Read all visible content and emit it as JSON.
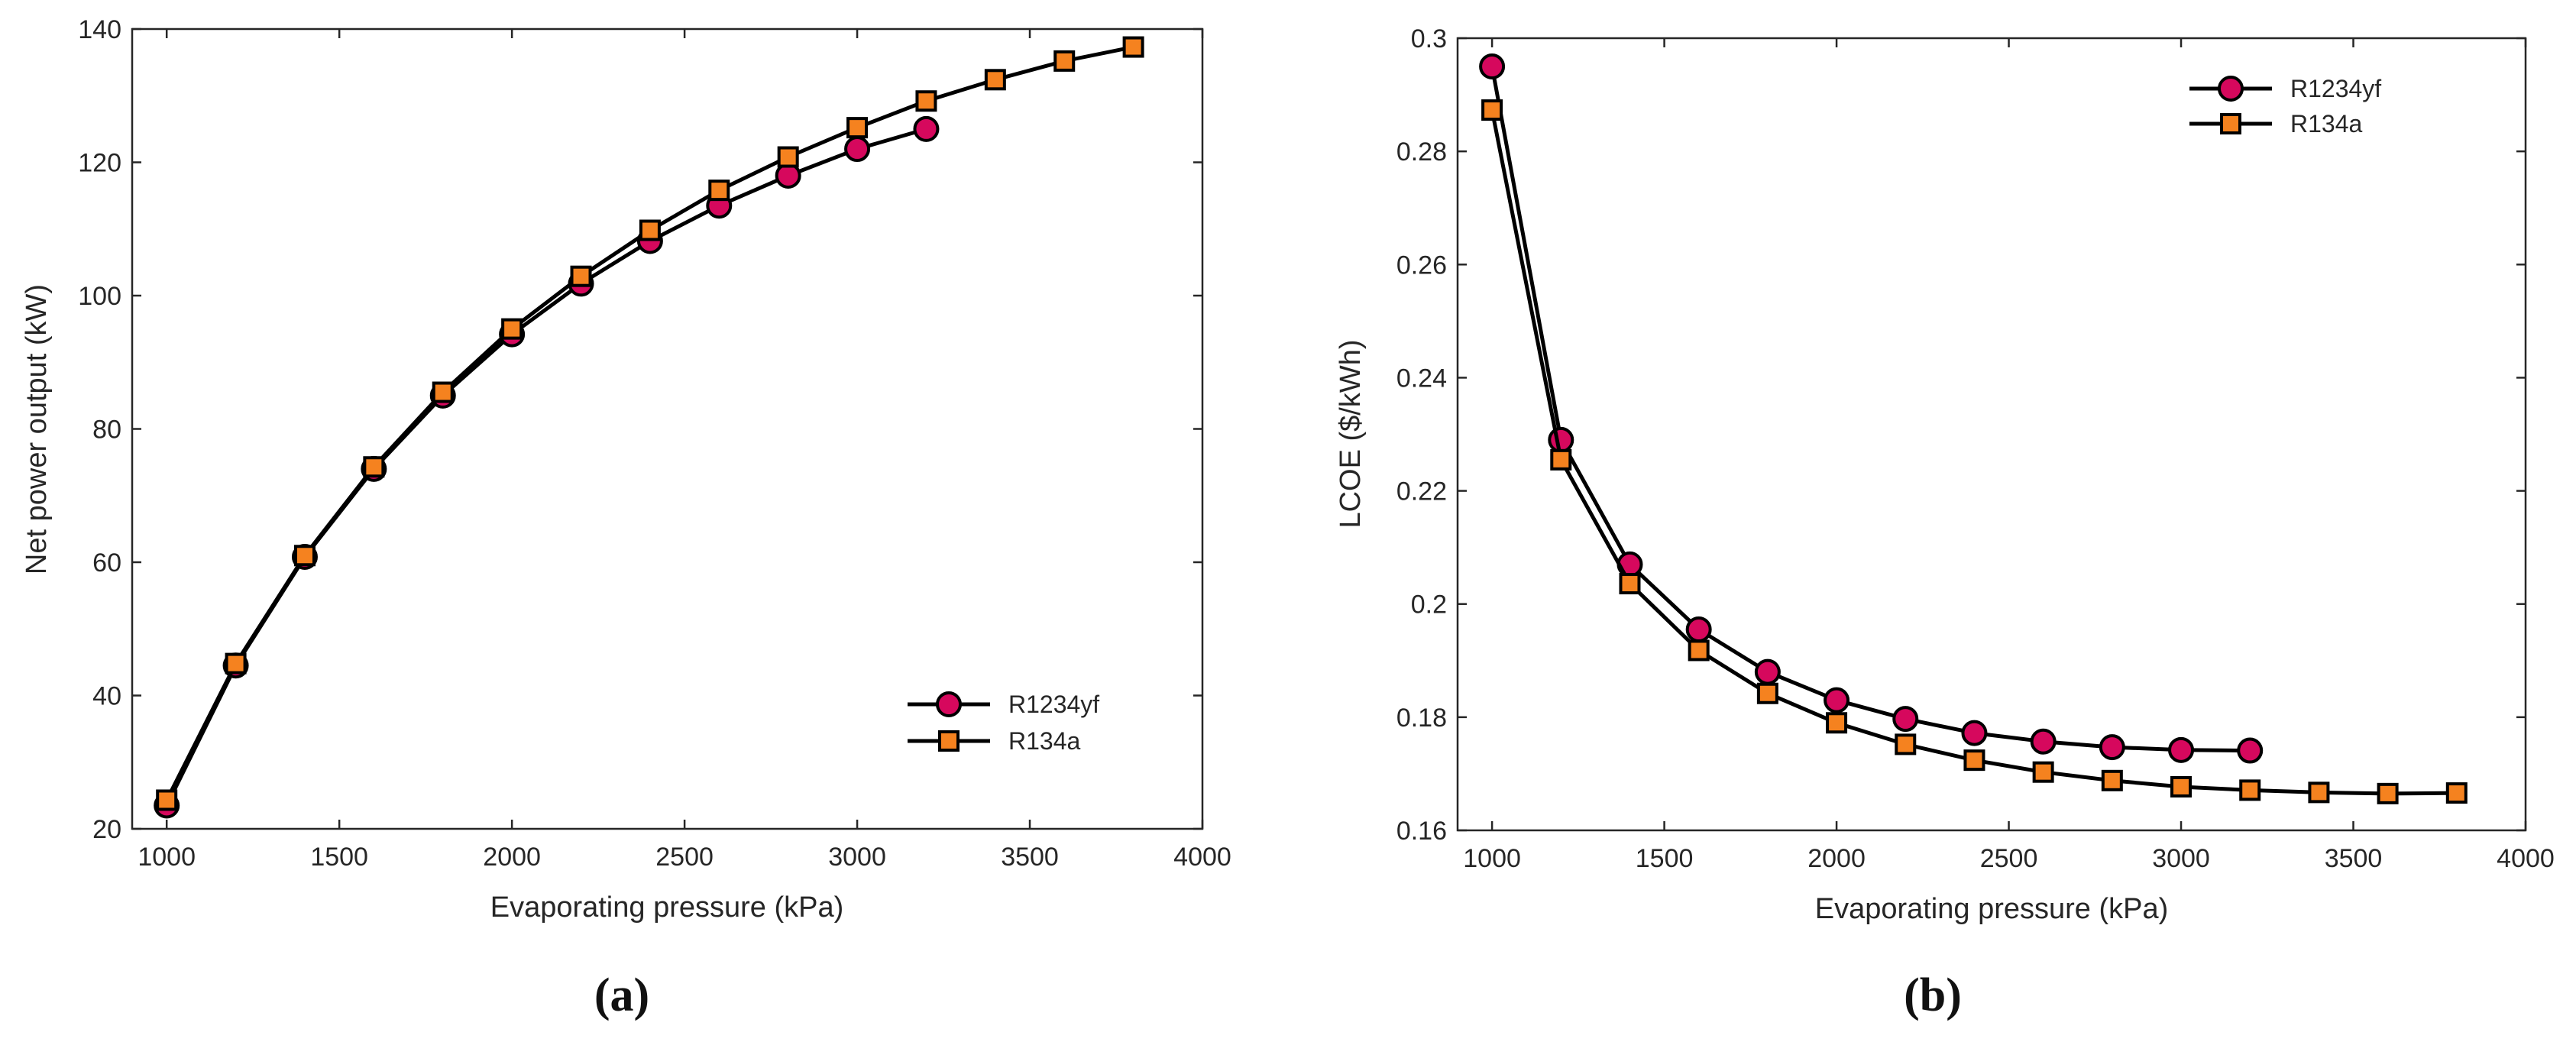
{
  "chart_data": [
    {
      "type": "line",
      "caption": "(a)",
      "xlabel": "Evaporating pressure (kPa)",
      "ylabel": "Net power output (kW)",
      "xlim": [
        900,
        4000
      ],
      "ylim": [
        20,
        140
      ],
      "xticks": [
        1000,
        1500,
        2000,
        2500,
        3000,
        3500,
        4000
      ],
      "yticks": [
        20,
        40,
        60,
        80,
        100,
        120,
        140
      ],
      "legend_position": "bottom-right",
      "series": [
        {
          "name": "R1234yf",
          "marker": "circle",
          "color": "#d6085d",
          "x": [
            1000,
            1200,
            1400,
            1600,
            1800,
            2000,
            2200,
            2400,
            2600,
            2800,
            3000,
            3200
          ],
          "values": [
            23.5,
            44.5,
            60.8,
            74.0,
            85.0,
            94.2,
            101.8,
            108.2,
            113.5,
            118.0,
            122.0,
            125.0
          ]
        },
        {
          "name": "R134a",
          "marker": "square",
          "color": "#f5821f",
          "x": [
            1000,
            1200,
            1400,
            1600,
            1800,
            2000,
            2200,
            2400,
            2600,
            2800,
            3000,
            3200,
            3400,
            3600,
            3800
          ],
          "values": [
            24.3,
            44.8,
            61.0,
            74.3,
            85.5,
            95.0,
            102.9,
            109.8,
            115.8,
            120.8,
            125.2,
            129.2,
            132.4,
            135.2,
            137.3
          ]
        }
      ]
    },
    {
      "type": "line",
      "caption": "(b)",
      "xlabel": "Evaporating pressure (kPa)",
      "ylabel": "LCOE ($/kWh)",
      "xlim": [
        900,
        4000
      ],
      "ylim": [
        0.16,
        0.3
      ],
      "xticks": [
        1000,
        1500,
        2000,
        2500,
        3000,
        3500,
        4000
      ],
      "yticks": [
        0.16,
        0.18,
        0.2,
        0.22,
        0.24,
        0.26,
        0.28,
        0.3
      ],
      "ytick_labels": [
        "0.16",
        "0.18",
        "0.2",
        "0.22",
        "0.24",
        "0.26",
        "0.28",
        "0.3"
      ],
      "legend_position": "top-right",
      "series": [
        {
          "name": "R1234yf",
          "marker": "circle",
          "color": "#d6085d",
          "x": [
            1000,
            1200,
            1400,
            1600,
            1800,
            2000,
            2200,
            2400,
            2600,
            2800,
            3000,
            3200
          ],
          "values": [
            0.295,
            0.229,
            0.207,
            0.1955,
            0.188,
            0.183,
            0.1797,
            0.1772,
            0.1757,
            0.1747,
            0.1742,
            0.1741
          ]
        },
        {
          "name": "R134a",
          "marker": "square",
          "color": "#f5821f",
          "x": [
            1000,
            1200,
            1400,
            1600,
            1800,
            2000,
            2200,
            2400,
            2600,
            2800,
            3000,
            3200,
            3400,
            3600,
            3800
          ],
          "values": [
            0.2873,
            0.2255,
            0.2036,
            0.1918,
            0.1842,
            0.179,
            0.1752,
            0.1724,
            0.1703,
            0.1688,
            0.1677,
            0.1671,
            0.1667,
            0.1665,
            0.1666
          ]
        }
      ]
    }
  ]
}
